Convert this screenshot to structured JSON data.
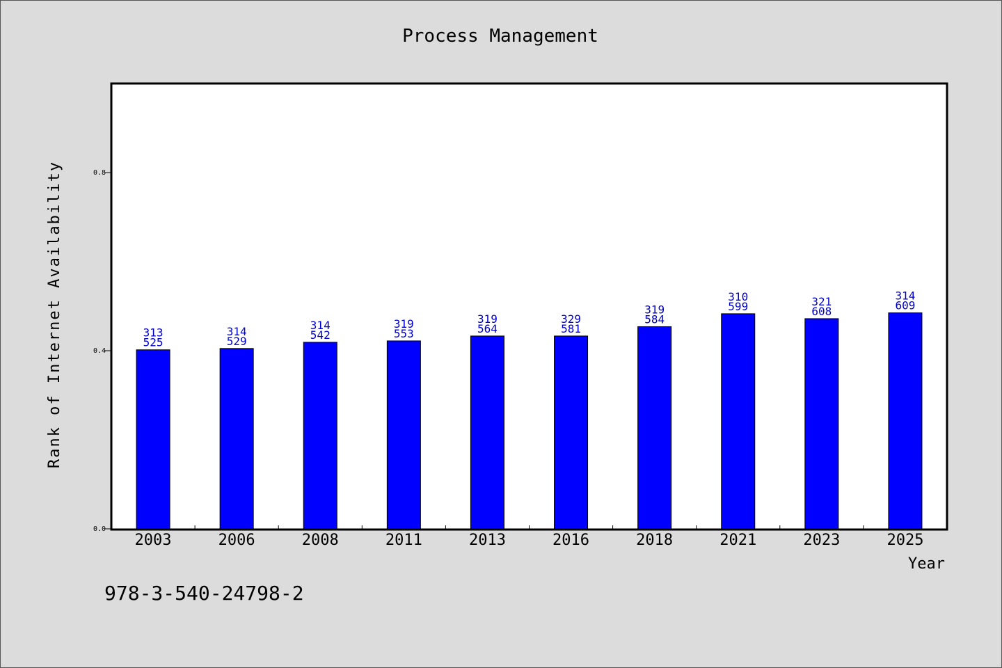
{
  "chart_data": {
    "type": "bar",
    "title": "Process Management",
    "xlabel": "Year",
    "ylabel": "Rank of Internet Availability",
    "categories": [
      "2003",
      "2006",
      "2008",
      "2011",
      "2013",
      "2016",
      "2018",
      "2021",
      "2023",
      "2025"
    ],
    "values": [
      0.402,
      0.405,
      0.419,
      0.422,
      0.433,
      0.433,
      0.454,
      0.483,
      0.472,
      0.485
    ],
    "label_top": [
      "313",
      "314",
      "314",
      "319",
      "319",
      "329",
      "319",
      "310",
      "321",
      "314"
    ],
    "label_bottom": [
      "525",
      "529",
      "542",
      "553",
      "564",
      "581",
      "584",
      "599",
      "608",
      "609"
    ],
    "ylim": [
      0,
      1.0
    ],
    "yticks": [
      "0.0",
      "0.4",
      "0.8"
    ],
    "ytick_values": [
      0.0,
      0.4,
      0.8
    ],
    "grid": false,
    "colors": {
      "bar": "#0000ff",
      "label": "#0000cc",
      "background": "#dcdcdc",
      "plot": "#ffffff"
    }
  },
  "footer": {
    "isbn": "978-3-540-24798-2"
  }
}
